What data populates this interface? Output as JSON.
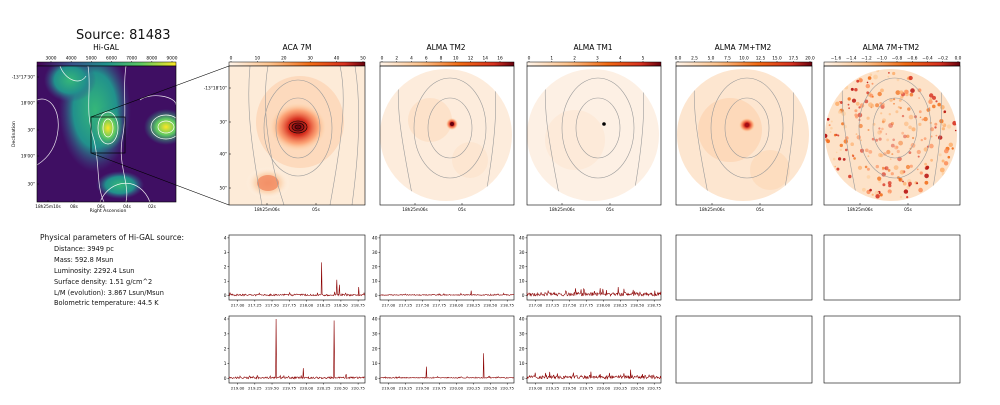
{
  "source_title": "Source: 81483",
  "params": {
    "heading": "Physical parameters of Hi-GAL source:",
    "lines": [
      "Distance: 3949 pc",
      "Mass: 592.8 Msun",
      "Luminosity: 2292.4 Lsun",
      "Surface density: 1.51 g/cm^2",
      "L/M (evolution): 3.867 Lsun/Msun",
      "Bolometric temperature: 44.5 K"
    ]
  },
  "colors": {
    "viridis_low": "#440154",
    "viridis_high": "#fde725",
    "map_high": "#67000d",
    "map_low": "#fff5eb",
    "spectrum": "#8b0000",
    "contour": "#a8a8a8"
  },
  "chart_data": [
    {
      "type": "heatmap",
      "panel": "higal",
      "title": "Hi-GAL",
      "colorbar_ticks": [
        "3000",
        "4000",
        "5000",
        "6000",
        "7000",
        "8000",
        "9000"
      ],
      "xticks": [
        "18h25m10s",
        "08s",
        "06s",
        "04s",
        "02s"
      ],
      "yticks": [
        "-13°17'30\"",
        "18'00\"",
        "30\"",
        "19'00\"",
        "30\""
      ],
      "xlabel": "Right Ascension",
      "ylabel": "Declination"
    },
    {
      "type": "heatmap",
      "panel": "aca7m",
      "title": "ACA 7M",
      "colorbar_ticks": [
        "0",
        "10",
        "20",
        "30",
        "40",
        "50"
      ],
      "xticks": [
        "18h25m06s",
        "05s"
      ],
      "yticks": [
        "-13°18'10\"",
        "30\"",
        "40\"",
        "50\""
      ]
    },
    {
      "type": "heatmap",
      "panel": "tm2",
      "title": "ALMA TM2",
      "colorbar_ticks": [
        "0",
        "2",
        "4",
        "6",
        "8",
        "10",
        "12",
        "14",
        "16"
      ],
      "xticks": [
        "18h25m06s",
        "05s"
      ]
    },
    {
      "type": "heatmap",
      "panel": "tm1",
      "title": "ALMA TM1",
      "colorbar_ticks": [
        "0",
        "1",
        "2",
        "3",
        "4",
        "5"
      ],
      "xticks": [
        "18h25m06s",
        "05s"
      ]
    },
    {
      "type": "heatmap",
      "panel": "7mtm2",
      "title": "ALMA 7M+TM2",
      "colorbar_ticks": [
        "0.0",
        "2.5",
        "5.0",
        "7.5",
        "10.0",
        "12.5",
        "15.0",
        "17.5",
        "20.0"
      ],
      "xticks": [
        "18h25m06s",
        "05s"
      ]
    },
    {
      "type": "heatmap",
      "panel": "7mtm2b",
      "title": "ALMA 7M+TM2",
      "colorbar_ticks": [
        "−1.6",
        "−1.4",
        "−1.2",
        "−1.0",
        "−0.8",
        "−0.6",
        "−0.4",
        "−0.2",
        "0.0"
      ],
      "xticks": [
        "18h25m06s",
        "05s"
      ]
    },
    {
      "type": "line",
      "panel": "aca_lsb",
      "xlim": [
        216.875,
        218.85
      ],
      "ylim": [
        -0.3,
        4.2
      ],
      "xticks": [
        217.0,
        217.25,
        217.5,
        217.75,
        218.0,
        218.25,
        218.5,
        218.75
      ],
      "xticklabels": [
        "217.00",
        "217.25",
        "217.50",
        "217.75",
        "218.00",
        "218.25",
        "218.50",
        "218.75"
      ],
      "yticks": [
        0,
        1,
        2,
        3,
        4
      ],
      "baseline": 0.05,
      "noise": 0.06,
      "peaks": [
        [
          218.22,
          2.3
        ],
        [
          218.44,
          1.1
        ],
        [
          218.48,
          0.75
        ],
        [
          218.76,
          0.6
        ],
        [
          218.16,
          0.2
        ]
      ]
    },
    {
      "type": "line",
      "panel": "tm2_lsb",
      "xlim": [
        216.875,
        218.85
      ],
      "ylim": [
        -3,
        42
      ],
      "xticks": [
        217.0,
        217.25,
        217.5,
        217.75,
        218.0,
        218.25,
        218.5,
        218.75
      ],
      "xticklabels": [
        "217.00",
        "217.25",
        "217.50",
        "217.75",
        "218.00",
        "218.25",
        "218.50",
        "218.75"
      ],
      "yticks": [
        0,
        10,
        20,
        30,
        40
      ],
      "baseline": 0.5,
      "noise": 0.3,
      "peaks": [
        [
          218.22,
          3.5
        ]
      ]
    },
    {
      "type": "line",
      "panel": "tm1_lsb",
      "xlim": [
        216.875,
        218.85
      ],
      "ylim": [
        -3,
        42
      ],
      "xticks": [
        217.0,
        217.25,
        217.5,
        217.75,
        218.0,
        218.25,
        218.5,
        218.75
      ],
      "xticklabels": [
        "217.00",
        "217.25",
        "217.50",
        "217.75",
        "218.00",
        "218.25",
        "218.50",
        "218.75"
      ],
      "yticks": [
        0,
        10,
        20,
        30,
        40
      ],
      "baseline": 1.0,
      "noise": 1.2,
      "peaks": [
        [
          218.22,
          6
        ],
        [
          218.44,
          4
        ],
        [
          218.76,
          3.5
        ],
        [
          217.6,
          2.5
        ]
      ]
    },
    {
      "type": "line",
      "panel": "aca_usb",
      "xlim": [
        218.875,
        220.85
      ],
      "ylim": [
        -0.3,
        4.2
      ],
      "xticks": [
        219.0,
        219.25,
        219.5,
        219.75,
        220.0,
        220.25,
        220.5,
        220.75
      ],
      "xticklabels": [
        "219.00",
        "219.25",
        "219.50",
        "219.75",
        "220.00",
        "220.25",
        "220.50",
        "220.75"
      ],
      "yticks": [
        0,
        1,
        2,
        3,
        4
      ],
      "baseline": 0.05,
      "noise": 0.06,
      "peaks": [
        [
          219.56,
          4.0
        ],
        [
          220.4,
          3.9
        ],
        [
          219.95,
          0.7
        ],
        [
          220.58,
          0.3
        ]
      ]
    },
    {
      "type": "line",
      "panel": "tm2_usb",
      "xlim": [
        218.875,
        220.85
      ],
      "ylim": [
        -3,
        42
      ],
      "xticks": [
        219.0,
        219.25,
        219.5,
        219.75,
        220.0,
        220.25,
        220.5,
        220.75
      ],
      "xticklabels": [
        "219.00",
        "219.25",
        "219.50",
        "219.75",
        "220.00",
        "220.25",
        "220.50",
        "220.75"
      ],
      "yticks": [
        0,
        10,
        20,
        30,
        40
      ],
      "baseline": 0.5,
      "noise": 0.3,
      "peaks": [
        [
          219.56,
          8
        ],
        [
          220.4,
          17
        ]
      ]
    },
    {
      "type": "line",
      "panel": "tm1_usb",
      "xlim": [
        218.875,
        220.85
      ],
      "ylim": [
        -3,
        42
      ],
      "xticks": [
        219.0,
        219.25,
        219.5,
        219.75,
        220.0,
        220.25,
        220.5,
        220.75
      ],
      "xticklabels": [
        "219.00",
        "219.25",
        "219.50",
        "219.75",
        "220.00",
        "220.25",
        "220.50",
        "220.75"
      ],
      "yticks": [
        0,
        10,
        20,
        30,
        40
      ],
      "baseline": 1.0,
      "noise": 1.2,
      "peaks": [
        [
          220.4,
          6
        ],
        [
          219.56,
          4
        ],
        [
          219.95,
          3
        ],
        [
          220.58,
          3
        ]
      ]
    }
  ]
}
